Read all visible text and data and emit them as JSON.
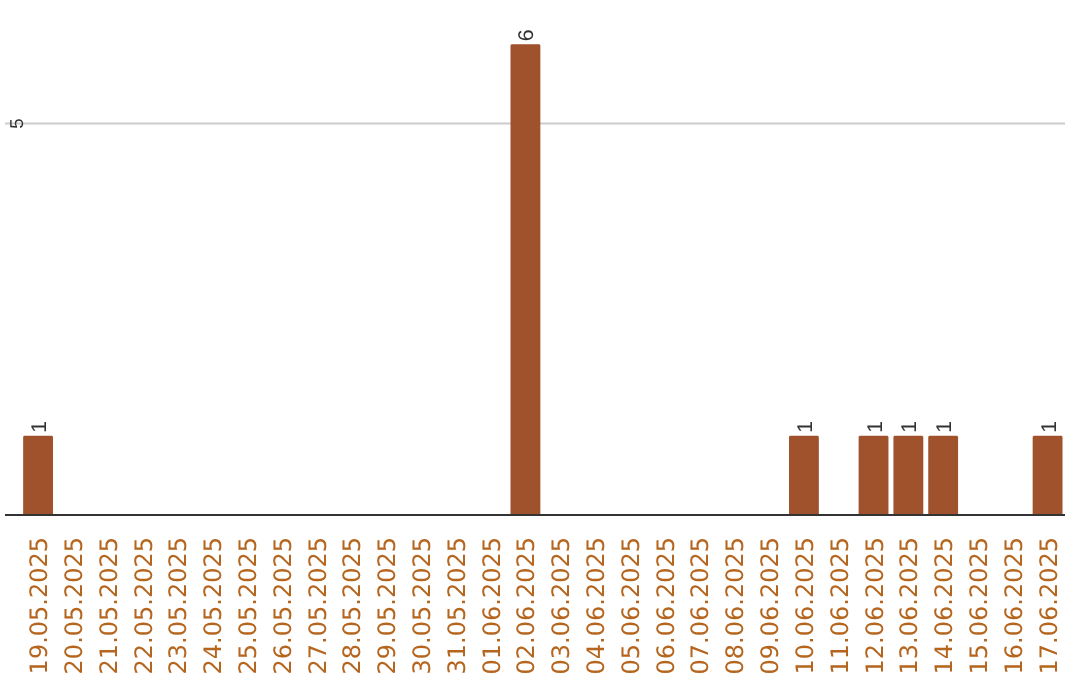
{
  "chart_data": {
    "type": "bar",
    "categories": [
      "19.05.2025",
      "20.05.2025",
      "21.05.2025",
      "22.05.2025",
      "23.05.2025",
      "24.05.2025",
      "25.05.2025",
      "26.05.2025",
      "27.05.2025",
      "28.05.2025",
      "29.05.2025",
      "30.05.2025",
      "31.05.2025",
      "01.06.2025",
      "02.06.2025",
      "03.06.2025",
      "04.06.2025",
      "05.06.2025",
      "06.06.2025",
      "07.06.2025",
      "08.06.2025",
      "09.06.2025",
      "10.06.2025",
      "11.06.2025",
      "12.06.2025",
      "13.06.2025",
      "14.06.2025",
      "15.06.2025",
      "16.06.2025",
      "17.06.2025"
    ],
    "values": [
      1,
      0,
      0,
      0,
      0,
      0,
      0,
      0,
      0,
      0,
      0,
      0,
      0,
      0,
      6,
      0,
      0,
      0,
      0,
      0,
      0,
      0,
      1,
      0,
      1,
      1,
      1,
      0,
      0,
      1
    ],
    "value_labels": [
      "1",
      null,
      null,
      null,
      null,
      null,
      null,
      null,
      null,
      null,
      null,
      null,
      null,
      null,
      "6",
      null,
      null,
      null,
      null,
      null,
      null,
      null,
      "1",
      null,
      "1",
      "1",
      "1",
      null,
      null,
      "1"
    ],
    "color": "#a0522d",
    "ref_lines": [
      {
        "axis": "y",
        "value": 5,
        "label": "5",
        "color": "#cccccc"
      }
    ]
  }
}
